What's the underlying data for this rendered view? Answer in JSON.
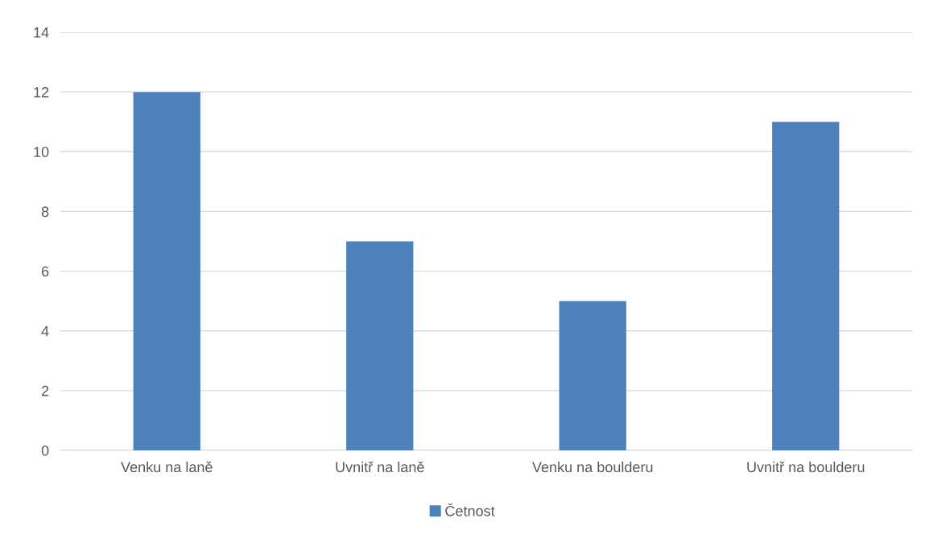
{
  "chart_data": {
    "type": "bar",
    "categories": [
      "Venku na laně",
      "Uvnitř na laně",
      "Venku na boulderu",
      "Uvnitř na boulderu"
    ],
    "series": [
      {
        "name": "Četnost",
        "color": "#4f81bd",
        "values": [
          12,
          7,
          5,
          11
        ]
      }
    ],
    "ylim": [
      0,
      14
    ],
    "yticks": [
      0,
      2,
      4,
      6,
      8,
      10,
      12,
      14
    ],
    "grid": "y",
    "legend": "bottom"
  }
}
